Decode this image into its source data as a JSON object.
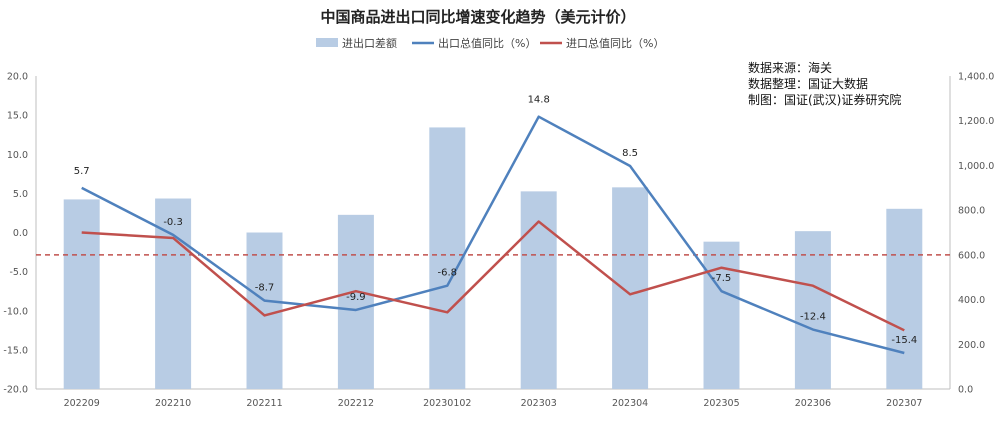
{
  "chart_data": {
    "type": "bar+line",
    "title": "中国商品进出口同比增速变化趋势（美元计价）",
    "categories": [
      "202209",
      "202210",
      "202211",
      "202212",
      "20230102",
      "202303",
      "202304",
      "202305",
      "202306",
      "202307"
    ],
    "bar_series": {
      "name": "进出口差额",
      "axis": "right",
      "color": "#b8cce4",
      "values": [
        848,
        852,
        700,
        779,
        1170,
        884,
        902,
        659,
        706,
        806
      ]
    },
    "series": [
      {
        "name": "出口总值同比（%）",
        "axis": "left",
        "color": "#4f81bd",
        "values": [
          5.7,
          -0.3,
          -8.7,
          -9.9,
          -6.8,
          14.8,
          8.5,
          -7.5,
          -12.4,
          -15.4
        ],
        "labels": [
          "5.7",
          "-0.3",
          "-8.7",
          "-9.9",
          "-6.8",
          "14.8",
          "8.5",
          "-7.5",
          "-12.4",
          "-15.4"
        ]
      },
      {
        "name": "进口总值同比（%）",
        "axis": "left",
        "color": "#c0504d",
        "values": [
          0.0,
          -0.7,
          -10.6,
          -7.5,
          -10.2,
          1.4,
          -7.9,
          -4.5,
          -6.8,
          -12.5
        ]
      }
    ],
    "y_left": {
      "min": -20,
      "max": 20,
      "step": 5,
      "ticks": [
        "20.0",
        "15.0",
        "10.0",
        "5.0",
        "0.0",
        "-5.0",
        "-10.0",
        "-15.0",
        "-20.0"
      ]
    },
    "y_right": {
      "min": 0,
      "max": 1400,
      "step": 200,
      "ticks": [
        "1,400.0",
        "1,200.0",
        "1,000.0",
        "800.0",
        "600.0",
        "400.0",
        "200.0",
        "0.0"
      ]
    },
    "reference_line": {
      "axis": "right",
      "value": 600,
      "color": "#c0504d",
      "style": "dashed"
    },
    "legend": {
      "placement": "top"
    },
    "grid": false,
    "annotations": [
      "数据来源：海关",
      "数据整理：国证大数据",
      "制图：国证(武汉)证券研究院"
    ]
  }
}
